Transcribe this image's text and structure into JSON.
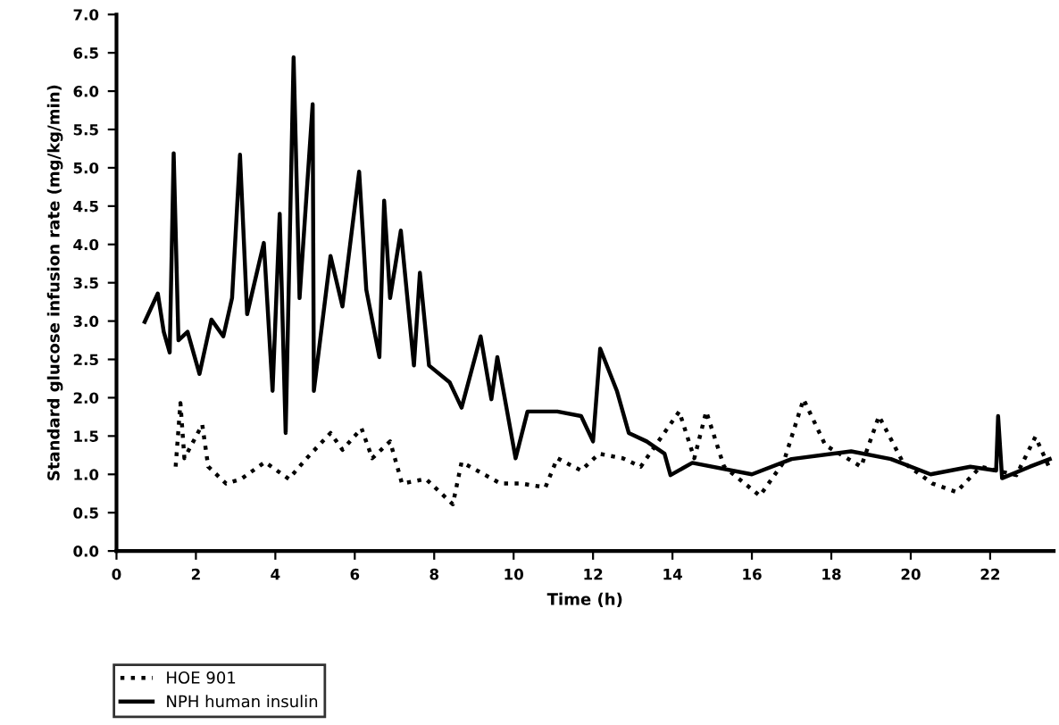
{
  "chart_data": {
    "type": "line",
    "xlabel": "Time (h)",
    "ylabel": "Standard glucose infusion rate (mg/kg/min)",
    "xlim": [
      0,
      23.6
    ],
    "xticks": [
      0,
      2,
      4,
      6,
      8,
      10,
      12,
      14,
      16,
      18,
      20,
      22
    ],
    "ylim": [
      0,
      7
    ],
    "yticks": [
      {
        "value": 0,
        "label": "0.0"
      },
      {
        "value": 0.5,
        "label": "0.5"
      },
      {
        "value": 1,
        "label": "1.0"
      },
      {
        "value": 1.5,
        "label": "1.5"
      },
      {
        "value": 2,
        "label": "2.0"
      },
      {
        "value": 2.5,
        "label": "2.5"
      },
      {
        "value": 3,
        "label": "3.0"
      },
      {
        "value": 3.5,
        "label": "3.5"
      },
      {
        "value": 4,
        "label": "4.0"
      },
      {
        "value": 4.5,
        "label": "4.5"
      },
      {
        "value": 5,
        "label": "5.0"
      },
      {
        "value": 5.5,
        "label": "5.5"
      },
      {
        "value": 6,
        "label": "6.0"
      },
      {
        "value": 6.5,
        "label": "6.5"
      },
      {
        "value": 7,
        "label": "7.0"
      }
    ],
    "grid": false,
    "legend": "bottom",
    "marker": "none",
    "series": [
      {
        "name": "HOE 901",
        "color": "#000000",
        "line_style": "dotted",
        "x": [
          1.49,
          1.61,
          1.71,
          2.16,
          2.31,
          2.76,
          3.14,
          3.74,
          4.34,
          4.79,
          5.39,
          5.69,
          6.17,
          6.44,
          6.89,
          7.19,
          7.79,
          8.47,
          8.69,
          9.29,
          9.67,
          10.19,
          10.8,
          11.1,
          11.7,
          12.15,
          12.75,
          13.2,
          14.17,
          14.55,
          14.85,
          15.3,
          16.2,
          16.8,
          17.3,
          17.85,
          18.75,
          19.2,
          19.8,
          20.55,
          21.15,
          21.76,
          22.66,
          23.14,
          23.48
        ],
        "values": [
          1.1,
          1.93,
          1.21,
          1.65,
          1.1,
          0.88,
          0.94,
          1.16,
          0.94,
          1.21,
          1.54,
          1.32,
          1.6,
          1.21,
          1.43,
          0.88,
          0.94,
          0.61,
          1.16,
          0.99,
          0.88,
          0.88,
          0.83,
          1.21,
          1.05,
          1.27,
          1.21,
          1.1,
          1.82,
          1.21,
          1.82,
          1.1,
          0.72,
          1.16,
          1.98,
          1.38,
          1.1,
          1.76,
          1.16,
          0.88,
          0.77,
          1.1,
          0.99,
          1.49,
          1.1
        ]
      },
      {
        "name": "NPH human insulin",
        "color": "#000000",
        "line_style": "solid",
        "x": [
          0.71,
          1.04,
          1.19,
          1.34,
          1.44,
          1.56,
          1.79,
          2.09,
          2.39,
          2.69,
          2.91,
          3.11,
          3.29,
          3.71,
          3.93,
          4.11,
          4.26,
          4.46,
          4.61,
          4.94,
          4.97,
          5.39,
          5.69,
          6.11,
          6.29,
          6.62,
          6.74,
          6.89,
          7.16,
          7.49,
          7.64,
          7.87,
          8.39,
          8.69,
          9.17,
          9.44,
          9.59,
          10.05,
          10.35,
          11.1,
          11.7,
          12.0,
          12.18,
          12.6,
          12.9,
          13.35,
          13.8,
          13.95,
          14.5,
          16.0,
          17.0,
          18.5,
          19.5,
          20.5,
          21.5,
          22.15,
          22.2,
          22.3,
          23.0,
          23.5
        ],
        "values": [
          2.99,
          3.36,
          2.86,
          2.59,
          5.19,
          2.75,
          2.86,
          2.31,
          3.02,
          2.8,
          3.3,
          5.17,
          3.09,
          4.02,
          2.09,
          4.4,
          1.54,
          6.44,
          3.3,
          5.83,
          2.09,
          3.85,
          3.19,
          4.95,
          3.41,
          2.53,
          4.57,
          3.3,
          4.18,
          2.42,
          3.63,
          2.42,
          2.2,
          1.87,
          2.8,
          1.98,
          2.53,
          1.21,
          1.82,
          1.82,
          1.76,
          1.43,
          2.64,
          2.09,
          1.54,
          1.43,
          1.27,
          0.99,
          1.15,
          1.0,
          1.2,
          1.3,
          1.2,
          1.0,
          1.1,
          1.05,
          1.76,
          0.95,
          1.1,
          1.2
        ]
      }
    ]
  }
}
